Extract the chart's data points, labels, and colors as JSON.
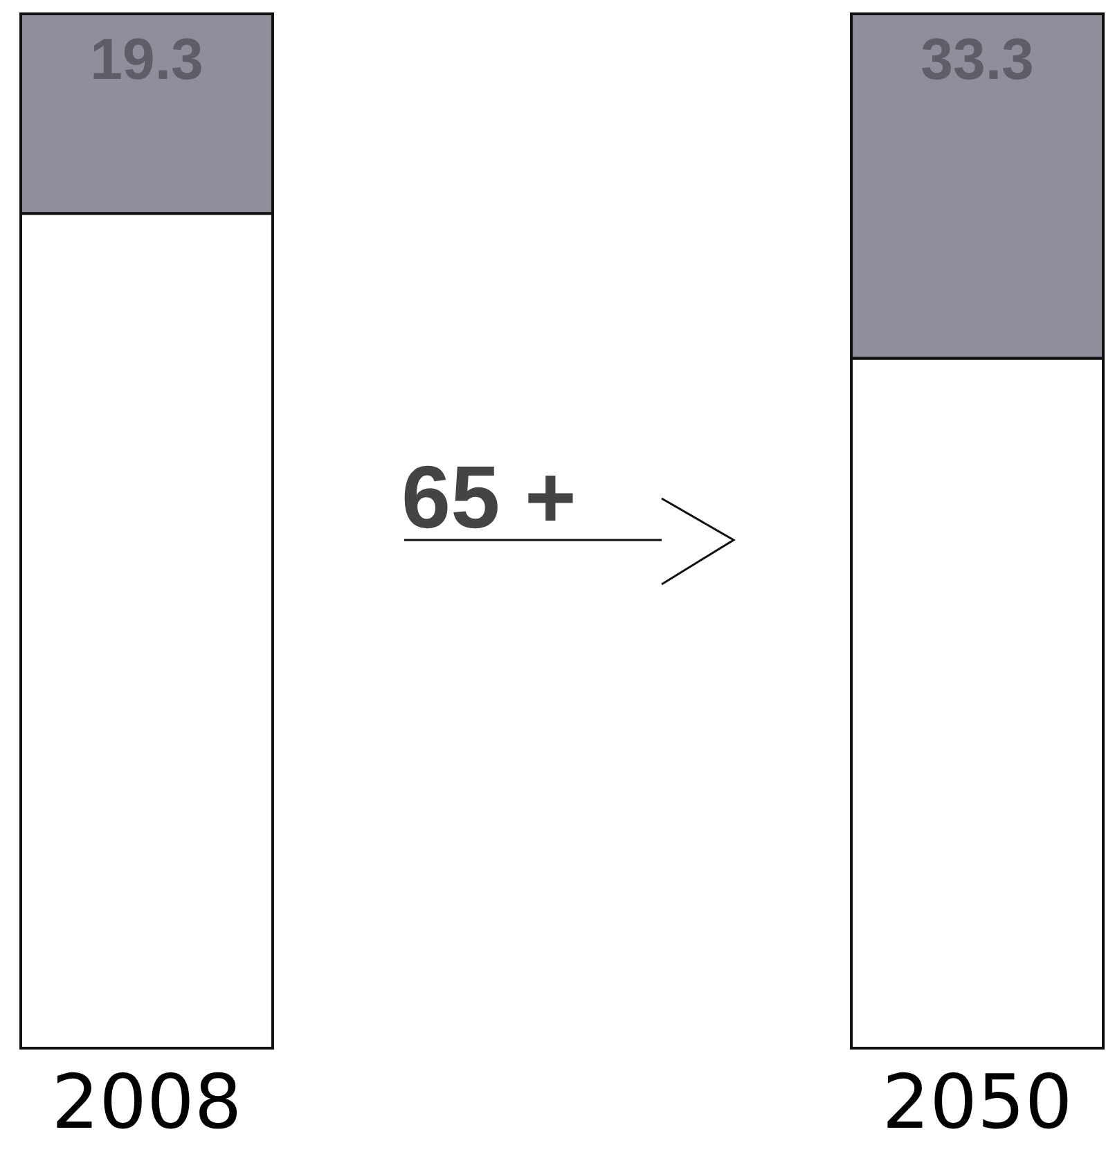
{
  "chart_data": {
    "type": "bar",
    "stacked": true,
    "categories": [
      "2008",
      "2050"
    ],
    "series": [
      {
        "color": "#ffffff",
        "values": [
          80.7,
          66.7
        ]
      },
      {
        "color": "#8e8e9c",
        "values": [
          19.3,
          33.3
        ],
        "value_labels": [
          "19.3",
          "33.3"
        ]
      }
    ],
    "annotations": [
      "65 +"
    ]
  }
}
